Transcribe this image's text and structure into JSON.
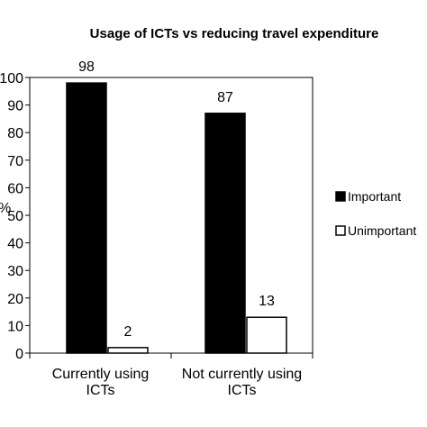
{
  "chart_data": {
    "type": "bar",
    "title": "Usage of ICTs vs reducing travel expenditure",
    "ylabel_partial": "%",
    "categories": [
      [
        "Currently using",
        "ICTs"
      ],
      [
        "Not currently using",
        "ICTs"
      ]
    ],
    "series": [
      {
        "name": "Important",
        "values": [
          98,
          87
        ],
        "color": "#000000"
      },
      {
        "name": "Unimportant",
        "values": [
          2,
          13
        ],
        "color": "#ffffff"
      }
    ],
    "ylim": [
      0,
      100
    ],
    "yticks": [
      0,
      10,
      20,
      30,
      40,
      50,
      60,
      70,
      80,
      90,
      100
    ],
    "grid": false,
    "legend": "right"
  }
}
